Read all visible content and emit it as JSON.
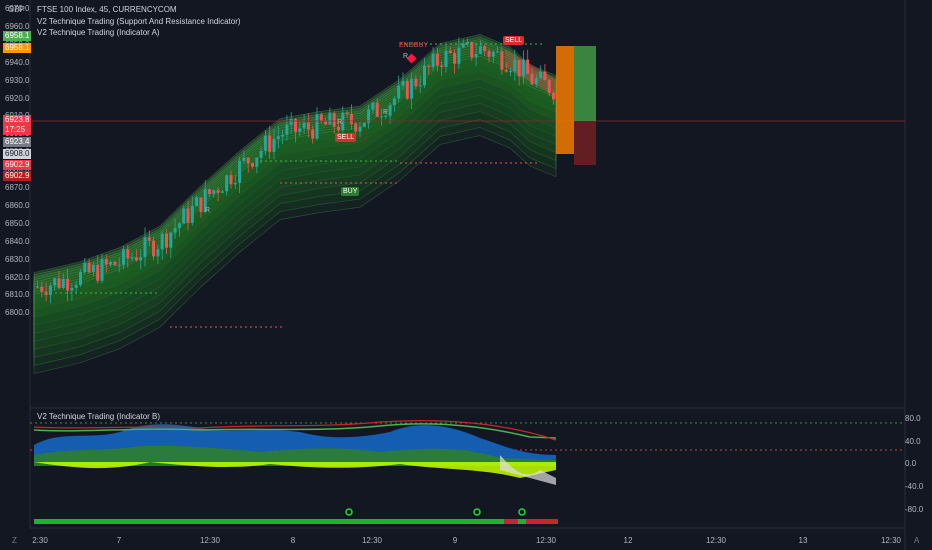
{
  "header": {
    "currency": "GBP",
    "symbol_line": "FTSE 100 Index, 45, CURRENCYCOM",
    "indicator_1": "V2 Technique Trading (Support And Resistance Indicator)",
    "indicator_2": "V2 Technique Trading (Indicator A)"
  },
  "price_axis": {
    "labels": [
      "6970.0",
      "6960.0",
      "6950.0",
      "6940.0",
      "6930.0",
      "6920.0",
      "6910.0",
      "6900.0",
      "6890.0",
      "6880.0",
      "6870.0",
      "6860.0",
      "6850.0",
      "6840.0",
      "6830.0",
      "6820.0",
      "6810.0",
      "6800.0"
    ],
    "badges": [
      {
        "text": "6958.1",
        "color": "#4caf50"
      },
      {
        "text": "6958.1",
        "color": "#ff9800"
      },
      {
        "text": "6923.8",
        "color": "#f23645"
      },
      {
        "text": "17:25",
        "color": "#f23645"
      },
      {
        "text": "6923.4",
        "color": "#787b86"
      },
      {
        "text": "6908.0",
        "color": "#d1d4dc"
      },
      {
        "text": "6902.9",
        "color": "#f23645"
      },
      {
        "text": "6902.9",
        "color": "#b71c1c"
      }
    ]
  },
  "time_axis": {
    "labels": [
      "2:30",
      "7",
      "12:30",
      "8",
      "12:30",
      "9",
      "12:30",
      "12",
      "12:30",
      "13",
      "12:30"
    ]
  },
  "signals": {
    "sell_1": "SELL",
    "buy_1": "BUY",
    "endbuy": "ENDBUY",
    "sell_2": "SELL",
    "r_marks": [
      "R",
      "R",
      "R",
      "R"
    ]
  },
  "oscillator": {
    "title": "V2 Technique Trading (Indicator B)",
    "labels": [
      "80.0",
      "40.0",
      "0.0",
      "-40.0",
      "-80.0"
    ]
  },
  "corners": {
    "left": "Z",
    "right": "A"
  },
  "colors": {
    "background": "#131722",
    "up": "#26a69a",
    "down": "#ef5350",
    "ribbon": "#1b5e20",
    "target_long": "#4caf50",
    "target_short": "#ff9800"
  }
}
